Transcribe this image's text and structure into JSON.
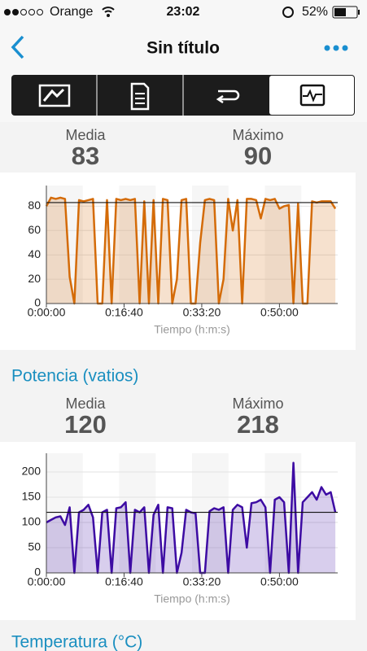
{
  "status_bar": {
    "carrier": "Orange",
    "time": "23:02",
    "battery": "52%"
  },
  "nav": {
    "title": "Sin título"
  },
  "sections": [
    {
      "stats": {
        "media_label": "Media",
        "media": 83,
        "max_label": "Máximo",
        "max": 90
      },
      "chart": {
        "type": "area",
        "x": [
          0,
          60,
          120,
          180,
          240,
          300,
          360,
          420,
          480,
          540,
          600,
          660,
          720,
          780,
          840,
          900,
          960,
          1020,
          1080,
          1140,
          1200,
          1260,
          1320,
          1380,
          1440,
          1500,
          1560,
          1620,
          1680,
          1740,
          1800,
          1860,
          1920,
          1980,
          2040,
          2100,
          2160,
          2220,
          2280,
          2340,
          2400,
          2460,
          2520,
          2580,
          2640,
          2700,
          2760,
          2820,
          2880,
          2940,
          3000,
          3060,
          3120,
          3180,
          3240,
          3300,
          3360,
          3420,
          3480,
          3540,
          3600,
          3660,
          3720
        ],
        "series": [
          {
            "color": "#d46b08",
            "values": [
              80,
              87,
              86,
              87,
              86,
              22,
              0,
              85,
              84,
              85,
              86,
              0,
              0,
              85,
              0,
              86,
              85,
              86,
              85,
              86,
              0,
              84,
              0,
              85,
              0,
              86,
              85,
              0,
              20,
              85,
              86,
              0,
              0,
              50,
              85,
              86,
              85,
              0,
              20,
              86,
              60,
              85,
              0,
              86,
              86,
              85,
              70,
              86,
              85,
              86,
              78,
              80,
              81,
              0,
              82,
              0,
              0,
              84,
              83,
              84,
              84,
              84,
              78
            ]
          }
        ],
        "xlim": [
          0,
          3750
        ],
        "xticks": [
          {
            "value": 0,
            "label": "0:00:00"
          },
          {
            "value": 1000,
            "label": "0:16:40"
          },
          {
            "value": 2000,
            "label": "0:33:20"
          },
          {
            "value": 3000,
            "label": "0:50:00"
          }
        ],
        "ylim": [
          0,
          97
        ],
        "yticks": [
          0,
          20,
          40,
          60,
          80
        ],
        "grid": true,
        "xlabel": "Tiempo (h:m:s)"
      }
    },
    {
      "title": "Potencia (vatios)",
      "stats": {
        "media_label": "Media",
        "media": 120,
        "max_label": "Máximo",
        "max": 218
      },
      "chart": {
        "type": "area",
        "x": [
          0,
          60,
          120,
          180,
          240,
          300,
          360,
          420,
          480,
          540,
          600,
          660,
          720,
          780,
          840,
          900,
          960,
          1020,
          1080,
          1140,
          1200,
          1260,
          1320,
          1380,
          1440,
          1500,
          1560,
          1620,
          1680,
          1740,
          1800,
          1860,
          1920,
          1980,
          2040,
          2100,
          2160,
          2220,
          2280,
          2340,
          2400,
          2460,
          2520,
          2580,
          2640,
          2700,
          2760,
          2820,
          2880,
          2940,
          3000,
          3060,
          3120,
          3180,
          3240,
          3300,
          3360,
          3420,
          3480,
          3540,
          3600,
          3660,
          3720
        ],
        "series": [
          {
            "color": "#3d0ba3",
            "values": [
              100,
              105,
              110,
              112,
              95,
              130,
              0,
              120,
              125,
              135,
              110,
              0,
              120,
              125,
              0,
              128,
              130,
              140,
              0,
              125,
              120,
              130,
              0,
              115,
              135,
              0,
              130,
              128,
              0,
              40,
              125,
              120,
              118,
              0,
              0,
              122,
              128,
              125,
              130,
              0,
              125,
              135,
              130,
              50,
              138,
              140,
              145,
              130,
              0,
              145,
              150,
              140,
              0,
              218,
              0,
              140,
              150,
              160,
              145,
              170,
              155,
              160,
              120
            ]
          }
        ],
        "xlim": [
          0,
          3750
        ],
        "xticks": [
          {
            "value": 0,
            "label": "0:00:00"
          },
          {
            "value": 1000,
            "label": "0:16:40"
          },
          {
            "value": 2000,
            "label": "0:33:20"
          },
          {
            "value": 3000,
            "label": "0:50:00"
          }
        ],
        "ylim": [
          0,
          237
        ],
        "yticks": [
          0,
          50,
          100,
          150,
          200
        ],
        "grid": true,
        "xlabel": "Tiempo (h:m:s)"
      }
    },
    {
      "title": "Temperatura (°C)"
    }
  ]
}
